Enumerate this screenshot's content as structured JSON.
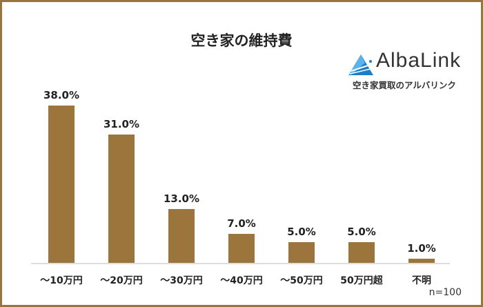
{
  "chart_data": {
    "type": "bar",
    "title": "空き家の維持費",
    "categories": [
      "～10万円",
      "～20万円",
      "～30万円",
      "～40万円",
      "～50万円",
      "50万円超",
      "不明"
    ],
    "values": [
      38.0,
      31.0,
      13.0,
      7.0,
      5.0,
      5.0,
      1.0
    ],
    "data_labels": [
      "38.0%",
      "31.0%",
      "13.0%",
      "7.0%",
      "5.0%",
      "5.0%",
      "1.0%"
    ],
    "unit": "%",
    "xlabel": "",
    "ylabel": "",
    "grid": false,
    "bar_color": "#9b753c",
    "note": "n=100"
  },
  "logo": {
    "name": "AlbaLink",
    "tagline": "空き家買取のアルバリンク",
    "color": "#1a7fc8"
  },
  "frame_color": "#9a743d"
}
